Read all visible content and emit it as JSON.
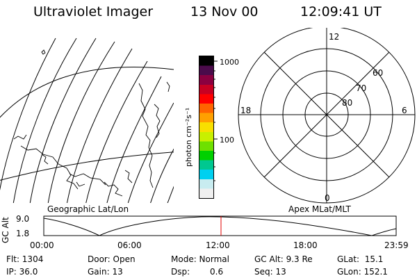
{
  "header": {
    "instrument": "Ultraviolet Imager",
    "date": "13 Nov 00",
    "time": "12:09:41 UT"
  },
  "colorbar": {
    "unit_label": "photon cm⁻²s⁻¹",
    "tick_labels": [
      "1000",
      "100"
    ],
    "colors": [
      "#000000",
      "#4b0b4b",
      "#8b0040",
      "#c80022",
      "#ff0000",
      "#ff6400",
      "#ffa000",
      "#f8e000",
      "#c8f000",
      "#6ee000",
      "#00d000",
      "#00c890",
      "#00d0f0",
      "#c8ecf0",
      "#f0f0f0"
    ]
  },
  "map_panel": {
    "label": "Geographic Lat/Lon"
  },
  "polar_panel": {
    "label": "Apex MLat/MLT",
    "mlt_labels": {
      "top": "12",
      "left": "18",
      "right": "6",
      "bottom": "0"
    },
    "lat_labels": [
      "60",
      "70",
      "80"
    ]
  },
  "altitude_plot": {
    "ylabel": "GC Alt",
    "y_ticks": [
      "9.0",
      "1.8"
    ],
    "x_ticks": [
      "00:00",
      "06:00",
      "12:00",
      "18:00",
      "23:59"
    ],
    "current_time_marker_color": "#e00000"
  },
  "footer": {
    "flt": "Flt: 1304",
    "ip": "IP: 36.0",
    "door": "Door: Open",
    "gain": "Gain: 13",
    "mode": "Mode: Normal",
    "dsp_label": "Dsp:",
    "dsp_value": "0.6",
    "gc_alt": "GC Alt: 9.3 Re",
    "seq": "Seq: 13",
    "glat": "GLat:  15.1",
    "glon": "GLon: 152.1"
  }
}
